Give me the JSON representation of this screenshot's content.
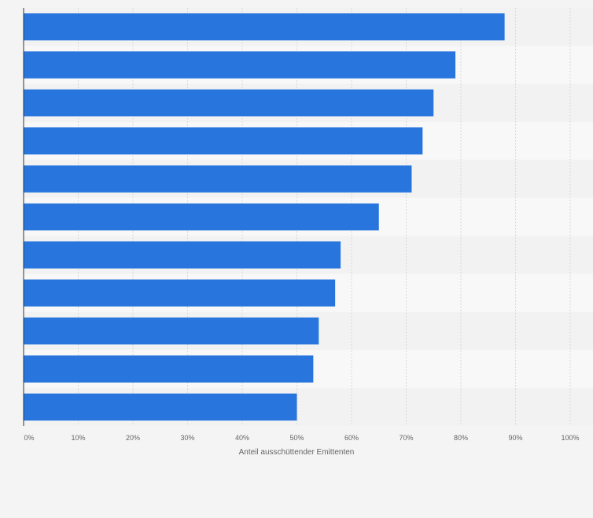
{
  "chart_data": {
    "type": "bar",
    "orientation": "horizontal",
    "categories": [
      "",
      "",
      "",
      "",
      "",
      "",
      "",
      "",
      "",
      "",
      ""
    ],
    "values": [
      88,
      79,
      75,
      73,
      71,
      65,
      58,
      57,
      54,
      53,
      50
    ],
    "title": "",
    "xlabel": "Anteil ausschüttender Emittenten",
    "ylabel": "",
    "xlim": [
      0,
      100
    ],
    "xticks": [
      "0%",
      "10%",
      "20%",
      "30%",
      "40%",
      "50%",
      "60%",
      "70%",
      "80%",
      "90%",
      "100%"
    ],
    "grid": true,
    "bar_color": "#2876dd"
  }
}
